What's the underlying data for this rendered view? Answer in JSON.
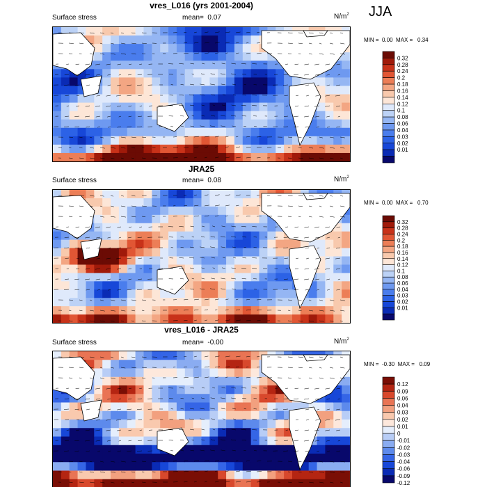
{
  "season": "JJA",
  "colors": {
    "stress_scale": [
      "#08086b",
      "#0a2bb5",
      "#1747d8",
      "#2c62e6",
      "#4a7ded",
      "#6e99f0",
      "#95b6f3",
      "#bcd2f6",
      "#dfe9fb",
      "#fde6d7",
      "#f8c9ad",
      "#f3a683",
      "#ec7e57",
      "#e15634",
      "#c83219",
      "#a01a0a",
      "#6b0b04"
    ],
    "diff_scale": [
      "#08086b",
      "#0a2bb5",
      "#1747d8",
      "#3565e6",
      "#5d8aec",
      "#8aacf1",
      "#b8cdf6",
      "#e5eefc",
      "#fde8dc",
      "#f9c9ae",
      "#f2a07f",
      "#e97454",
      "#d8482c",
      "#b42512",
      "#7a0e05"
    ],
    "land": "#ffffff",
    "coast": "#000000",
    "vector": "#000000"
  },
  "chart_data": [
    {
      "type": "heatmap",
      "title": "vres_L016 (yrs 2001-2004)",
      "left_label": "Surface stress",
      "mean_label": "mean=",
      "mean_value": "0.07",
      "units": "N/m",
      "units_sup": "2",
      "min_label": "MIN =",
      "min_value": "0.00",
      "max_label": "MAX =",
      "max_value": "0.34",
      "colorbar_ticks": [
        "0.32",
        "0.28",
        "0.24",
        "0.2",
        "0.18",
        "0.16",
        "0.14",
        "0.12",
        "0.1",
        "0.08",
        "0.06",
        "0.04",
        "0.03",
        "0.02",
        "0.01"
      ]
    },
    {
      "type": "heatmap",
      "title": "JRA25",
      "left_label": "Surface stress",
      "mean_label": "mean=",
      "mean_value": "0.08",
      "units": "N/m",
      "units_sup": "2",
      "min_label": "MIN =",
      "min_value": "0.00",
      "max_label": "MAX =",
      "max_value": "0.70",
      "colorbar_ticks": [
        "0.32",
        "0.28",
        "0.24",
        "0.2",
        "0.18",
        "0.16",
        "0.14",
        "0.12",
        "0.1",
        "0.08",
        "0.06",
        "0.04",
        "0.03",
        "0.02",
        "0.01"
      ]
    },
    {
      "type": "heatmap",
      "title": "vres_L016 - JRA25",
      "left_label": "Surface stress",
      "mean_label": "mean=",
      "mean_value": "-0.00",
      "units": "N/m",
      "units_sup": "2",
      "min_label": "MIN =",
      "min_value": "-0.30",
      "max_label": "MAX =",
      "max_value": "0.09",
      "colorbar_ticks": [
        "0.12",
        "0.09",
        "0.06",
        "0.04",
        "0.03",
        "0.02",
        "0.01",
        "0",
        "-0.01",
        "-0.02",
        "-0.03",
        "-0.04",
        "-0.06",
        "-0.09",
        "-0.12"
      ]
    }
  ]
}
